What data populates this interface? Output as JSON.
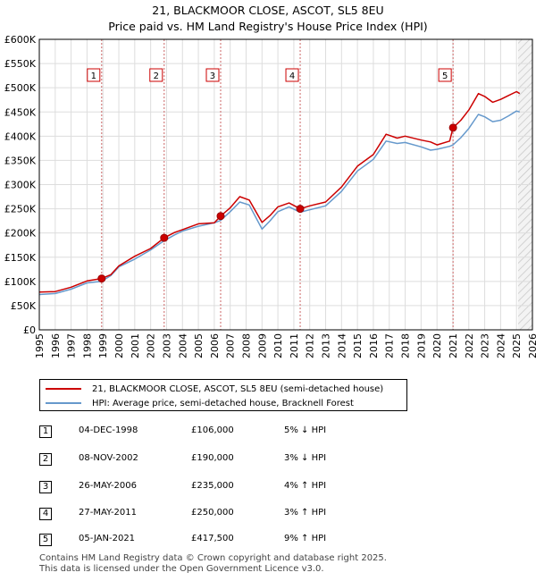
{
  "header": {
    "title": "21, BLACKMOOR CLOSE, ASCOT, SL5 8EU",
    "subtitle": "Price paid vs. HM Land Registry's House Price Index (HPI)"
  },
  "chart_data": {
    "type": "line",
    "xlim": [
      1995,
      2026
    ],
    "ylim": [
      0,
      600000
    ],
    "x_ticks": [
      1995,
      1996,
      1997,
      1998,
      1999,
      2000,
      2001,
      2002,
      2003,
      2004,
      2005,
      2006,
      2007,
      2008,
      2009,
      2010,
      2011,
      2012,
      2013,
      2014,
      2015,
      2016,
      2017,
      2018,
      2019,
      2020,
      2021,
      2022,
      2023,
      2024,
      2025,
      2026
    ],
    "y_ticks": [
      {
        "value": 0,
        "label": "£0"
      },
      {
        "value": 50000,
        "label": "£50K"
      },
      {
        "value": 100000,
        "label": "£100K"
      },
      {
        "value": 150000,
        "label": "£150K"
      },
      {
        "value": 200000,
        "label": "£200K"
      },
      {
        "value": 250000,
        "label": "£250K"
      },
      {
        "value": 300000,
        "label": "£300K"
      },
      {
        "value": 350000,
        "label": "£350K"
      },
      {
        "value": 400000,
        "label": "£400K"
      },
      {
        "value": 450000,
        "label": "£450K"
      },
      {
        "value": 500000,
        "label": "£500K"
      },
      {
        "value": 550000,
        "label": "£550K"
      },
      {
        "value": 600000,
        "label": "£600K"
      }
    ],
    "shaded_start": 2025.1,
    "series": [
      {
        "name": "21, BLACKMOOR CLOSE, ASCOT, SL5 8EU (semi-detached house)",
        "color": "#cc0000",
        "points": [
          [
            1995,
            78000
          ],
          [
            1996,
            79000
          ],
          [
            1997,
            88000
          ],
          [
            1998,
            101000
          ],
          [
            1998.92,
            106000
          ],
          [
            1999.5,
            114000
          ],
          [
            2000,
            132000
          ],
          [
            2001,
            152000
          ],
          [
            2002,
            168000
          ],
          [
            2002.85,
            190000
          ],
          [
            2003.5,
            201000
          ],
          [
            2004,
            207000
          ],
          [
            2005,
            219000
          ],
          [
            2006,
            221000
          ],
          [
            2006.4,
            235000
          ],
          [
            2007,
            252000
          ],
          [
            2007.6,
            275000
          ],
          [
            2008.2,
            268000
          ],
          [
            2009,
            222000
          ],
          [
            2009.5,
            236000
          ],
          [
            2010,
            254000
          ],
          [
            2010.7,
            262000
          ],
          [
            2011.4,
            250000
          ],
          [
            2012,
            256000
          ],
          [
            2013,
            264000
          ],
          [
            2014,
            295000
          ],
          [
            2015,
            338000
          ],
          [
            2016,
            362000
          ],
          [
            2016.8,
            404000
          ],
          [
            2017.5,
            396000
          ],
          [
            2018,
            400000
          ],
          [
            2019,
            392000
          ],
          [
            2019.6,
            388000
          ],
          [
            2020,
            382000
          ],
          [
            2020.8,
            390000
          ],
          [
            2021.01,
            417500
          ],
          [
            2021.5,
            433000
          ],
          [
            2022,
            454000
          ],
          [
            2022.6,
            488000
          ],
          [
            2023,
            482000
          ],
          [
            2023.5,
            470000
          ],
          [
            2024,
            476000
          ],
          [
            2024.5,
            484000
          ],
          [
            2025,
            492000
          ],
          [
            2025.2,
            488000
          ]
        ]
      },
      {
        "name": "HPI: Average price, semi-detached house, Bracknell Forest",
        "color": "#6699cc",
        "points": [
          [
            1995,
            73000
          ],
          [
            1996,
            75000
          ],
          [
            1997,
            84000
          ],
          [
            1998,
            97000
          ],
          [
            1998.92,
            100000
          ],
          [
            1999.5,
            112000
          ],
          [
            2000,
            130000
          ],
          [
            2001,
            146000
          ],
          [
            2002,
            165000
          ],
          [
            2002.85,
            184000
          ],
          [
            2003.5,
            196000
          ],
          [
            2004,
            204000
          ],
          [
            2005,
            214000
          ],
          [
            2006,
            221000
          ],
          [
            2006.4,
            226000
          ],
          [
            2007,
            244000
          ],
          [
            2007.6,
            264000
          ],
          [
            2008.2,
            258000
          ],
          [
            2009,
            208000
          ],
          [
            2009.5,
            225000
          ],
          [
            2010,
            244000
          ],
          [
            2010.7,
            254000
          ],
          [
            2011.4,
            243000
          ],
          [
            2012,
            248000
          ],
          [
            2013,
            256000
          ],
          [
            2014,
            286000
          ],
          [
            2015,
            328000
          ],
          [
            2016,
            352000
          ],
          [
            2016.8,
            390000
          ],
          [
            2017.5,
            385000
          ],
          [
            2018,
            387000
          ],
          [
            2019,
            378000
          ],
          [
            2019.6,
            371000
          ],
          [
            2020,
            373000
          ],
          [
            2020.8,
            379000
          ],
          [
            2021.01,
            382000
          ],
          [
            2021.5,
            397000
          ],
          [
            2022,
            416000
          ],
          [
            2022.6,
            445000
          ],
          [
            2023,
            440000
          ],
          [
            2023.5,
            430000
          ],
          [
            2024,
            433000
          ],
          [
            2024.5,
            442000
          ],
          [
            2025,
            452000
          ],
          [
            2025.2,
            450000
          ]
        ]
      }
    ],
    "sales": [
      {
        "label": "1",
        "x": 1998.92,
        "price": 106000
      },
      {
        "label": "2",
        "x": 2002.85,
        "price": 190000
      },
      {
        "label": "3",
        "x": 2006.4,
        "price": 235000
      },
      {
        "label": "4",
        "x": 2011.4,
        "price": 250000
      },
      {
        "label": "5",
        "x": 2021.01,
        "price": 417500
      }
    ]
  },
  "legend": {
    "items": [
      {
        "label": "21, BLACKMOOR CLOSE, ASCOT, SL5 8EU (semi-detached house)",
        "color": "#cc0000"
      },
      {
        "label": "HPI: Average price, semi-detached house, Bracknell Forest",
        "color": "#6699cc"
      }
    ]
  },
  "transactions": [
    {
      "num": "1",
      "date": "04-DEC-1998",
      "price": "£106,000",
      "hpi": "5% ↓ HPI"
    },
    {
      "num": "2",
      "date": "08-NOV-2002",
      "price": "£190,000",
      "hpi": "3% ↓ HPI"
    },
    {
      "num": "3",
      "date": "26-MAY-2006",
      "price": "£235,000",
      "hpi": "4% ↑ HPI"
    },
    {
      "num": "4",
      "date": "27-MAY-2011",
      "price": "£250,000",
      "hpi": "3% ↑ HPI"
    },
    {
      "num": "5",
      "date": "05-JAN-2021",
      "price": "£417,500",
      "hpi": "9% ↑ HPI"
    }
  ],
  "footer": {
    "line1": "Contains HM Land Registry data © Crown copyright and database right 2025.",
    "line2": "This data is licensed under the Open Government Licence v3.0."
  }
}
